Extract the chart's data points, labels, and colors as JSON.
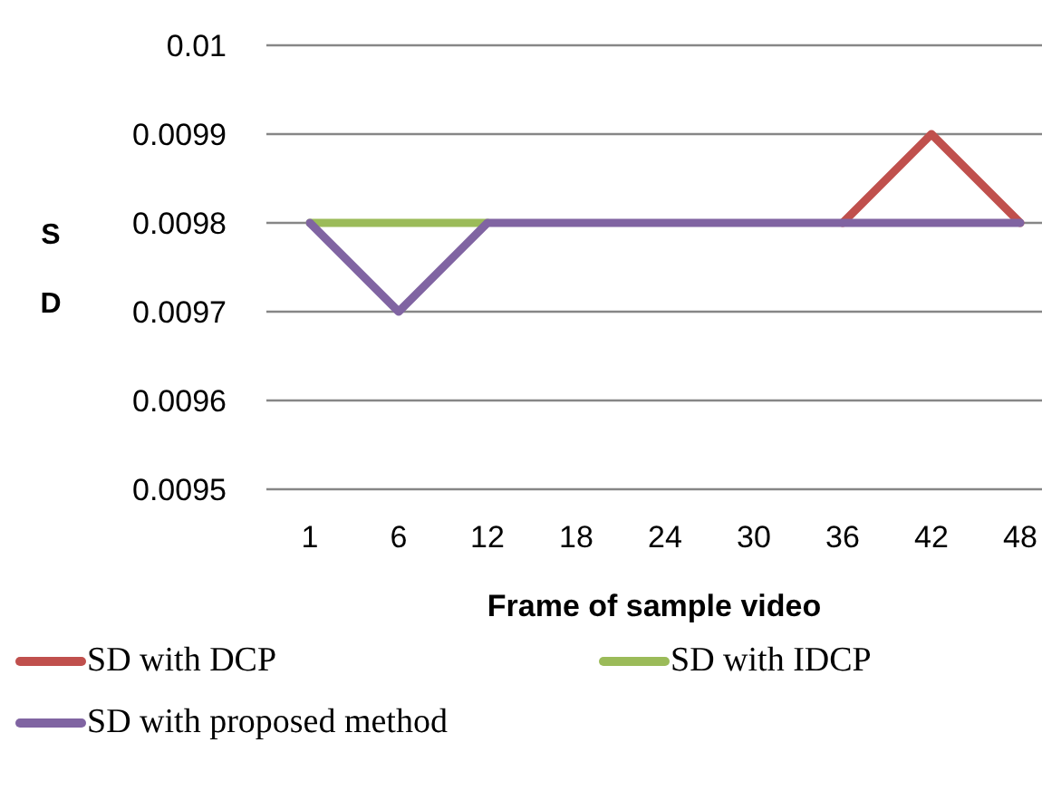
{
  "chart_data": {
    "type": "line",
    "xlabel": "Frame of sample video",
    "ylabel": "SD",
    "categories": [
      "1",
      "6",
      "12",
      "18",
      "24",
      "30",
      "36",
      "42",
      "48"
    ],
    "series": [
      {
        "name": "SD with DCP",
        "color": "#c0504d",
        "values": [
          null,
          null,
          null,
          null,
          null,
          null,
          0.0098,
          0.0099,
          0.0098
        ]
      },
      {
        "name": "SD with IDCP",
        "color": "#9bbb59",
        "values": [
          0.0098,
          0.0098,
          0.0098,
          null,
          null,
          null,
          null,
          null,
          null
        ]
      },
      {
        "name": "SD with proposed method",
        "color": "#8064a2",
        "values": [
          0.0098,
          0.0097,
          0.0098,
          0.0098,
          0.0098,
          0.0098,
          0.0098,
          0.0098,
          0.0098
        ]
      }
    ],
    "ylim": [
      0.0095,
      0.01
    ],
    "yticks": [
      0.0095,
      0.0096,
      0.0097,
      0.0098,
      0.0099,
      0.01
    ],
    "grid": "y",
    "legend": "bottom",
    "marker": "none",
    "line_style": "solid"
  }
}
